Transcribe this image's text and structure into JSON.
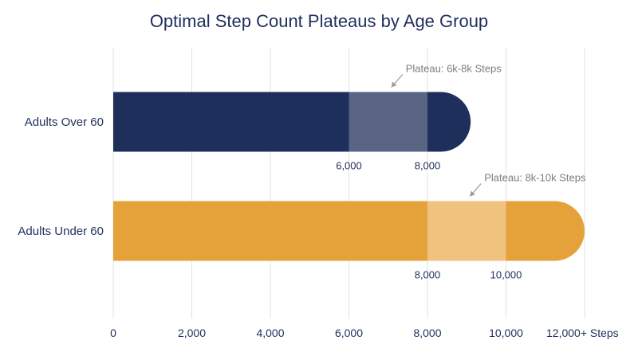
{
  "chart_data": {
    "type": "bar",
    "orientation": "horizontal",
    "title": "Optimal Step Count Plateaus by Age Group",
    "xlim": [
      0,
      12000
    ],
    "x_ticks": [
      {
        "value": 0,
        "label": "0"
      },
      {
        "value": 2000,
        "label": "2,000"
      },
      {
        "value": 4000,
        "label": "4,000"
      },
      {
        "value": 6000,
        "label": "6,000"
      },
      {
        "value": 8000,
        "label": "8,000"
      },
      {
        "value": 10000,
        "label": "10,000"
      },
      {
        "value": 12000,
        "label": "12,000+ Steps"
      }
    ],
    "grid": true,
    "bars": [
      {
        "category": "Adults Over 60",
        "value": 9100,
        "color": "#1f2f5c",
        "plateau": {
          "start": 6000,
          "end": 8000,
          "start_label": "6,000",
          "end_label": "8,000",
          "annotation": "Plateau: 6k-8k Steps",
          "color": "#5a6585"
        }
      },
      {
        "category": "Adults Under 60",
        "value": 12000,
        "color": "#e5a23a",
        "plateau": {
          "start": 8000,
          "end": 10000,
          "start_label": "8,000",
          "end_label": "10,000",
          "annotation": "Plateau: 8k-10k Steps",
          "color": "#efc27d"
        }
      }
    ],
    "annotation_color": "#9a9a9a"
  }
}
